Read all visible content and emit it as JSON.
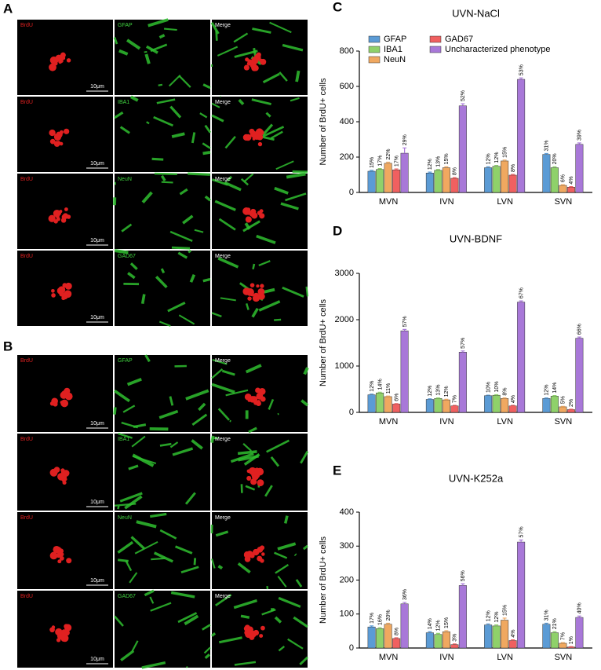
{
  "figure": {
    "panel_A": {
      "letter": "A",
      "rows": [
        [
          "BrdU",
          "GFAP",
          "Merge"
        ],
        [
          "BrdU",
          "IBA1",
          "Merge"
        ],
        [
          "BrdU",
          "NeuN",
          "Merge"
        ],
        [
          "BrdU",
          "GAD67",
          "Merge"
        ]
      ],
      "scale_bar": "10μm"
    },
    "panel_B": {
      "letter": "B",
      "rows": [
        [
          "BrdU",
          "GFAP",
          "Merge"
        ],
        [
          "BrdU",
          "IBA1",
          "Merge"
        ],
        [
          "BrdU",
          "NeuN",
          "Merge"
        ],
        [
          "BrdU",
          "GAD67",
          "Merge"
        ]
      ],
      "scale_bar": "10μm"
    }
  },
  "chart_data": [
    {
      "panel": "C",
      "type": "bar",
      "title": "UVN-NaCl",
      "y_label": "Number of BrdU+ cells",
      "legend": "upper left",
      "categories": [
        "MVN",
        "IVN",
        "LVN",
        "SVN"
      ],
      "ylim": [
        0,
        800
      ],
      "yticks": [
        0,
        200,
        400,
        600,
        800
      ],
      "series": [
        {
          "name": "GFAP",
          "color": "#5b9bd5",
          "values": [
            120,
            110,
            140,
            215
          ],
          "errors": [
            5,
            5,
            5,
            5
          ],
          "percent_labels": [
            "15%",
            "12%",
            "12%",
            "31%"
          ]
        },
        {
          "name": "IBA1",
          "color": "#8fd16a",
          "values": [
            130,
            125,
            148,
            140
          ],
          "errors": [
            5,
            5,
            5,
            5
          ],
          "percent_labels": [
            "17%",
            "13%",
            "12%",
            "20%"
          ]
        },
        {
          "name": "NeuN",
          "color": "#f0a860",
          "values": [
            165,
            140,
            178,
            40
          ],
          "errors": [
            6,
            5,
            5,
            4
          ],
          "percent_labels": [
            "22%",
            "15%",
            "15%",
            "6%"
          ]
        },
        {
          "name": "GAD67",
          "color": "#f06060",
          "values": [
            128,
            80,
            98,
            30
          ],
          "errors": [
            5,
            4,
            4,
            3
          ],
          "percent_labels": [
            "17%",
            "8%",
            "8%",
            "4%"
          ]
        },
        {
          "name": "Uncharacterized phenotype",
          "color": "#a878d8",
          "values": [
            222,
            490,
            640,
            272
          ],
          "errors": [
            30,
            12,
            8,
            8
          ],
          "percent_labels": [
            "29%",
            "52%",
            "53%",
            "39%"
          ]
        }
      ]
    },
    {
      "panel": "D",
      "type": "bar",
      "title": "UVN-BDNF",
      "y_label": "Number of BrdU+ cells",
      "categories": [
        "MVN",
        "IVN",
        "LVN",
        "SVN"
      ],
      "ylim": [
        0,
        3000
      ],
      "yticks": [
        0,
        1000,
        2000,
        3000
      ],
      "series": [
        {
          "color": "#5b9bd5",
          "values": [
            380,
            280,
            360,
            300
          ],
          "errors": [
            15,
            12,
            12,
            12
          ],
          "percent_labels": [
            "12%",
            "12%",
            "10%",
            "12%"
          ]
        },
        {
          "color": "#8fd16a",
          "values": [
            420,
            300,
            370,
            350
          ],
          "errors": [
            15,
            12,
            12,
            12
          ],
          "percent_labels": [
            "14%",
            "13%",
            "10%",
            "14%"
          ]
        },
        {
          "color": "#f0a860",
          "values": [
            340,
            270,
            300,
            120
          ],
          "errors": [
            12,
            12,
            12,
            10
          ],
          "percent_labels": [
            "11%",
            "12%",
            "8%",
            "5%"
          ]
        },
        {
          "color": "#f06060",
          "values": [
            180,
            140,
            140,
            60
          ],
          "errors": [
            10,
            10,
            10,
            8
          ],
          "percent_labels": [
            "6%",
            "7%",
            "4%",
            "2%"
          ]
        },
        {
          "color": "#a878d8",
          "values": [
            1760,
            1300,
            2380,
            1600
          ],
          "errors": [
            30,
            25,
            25,
            25
          ],
          "percent_labels": [
            "57%",
            "57%",
            "67%",
            "66%"
          ]
        }
      ]
    },
    {
      "panel": "E",
      "type": "bar",
      "title": "UVN-K252a",
      "y_label": "Number of BrdU+ cells",
      "categories": [
        "MVN",
        "IVN",
        "LVN",
        "SVN"
      ],
      "ylim": [
        0,
        400
      ],
      "yticks": [
        0,
        100,
        200,
        300,
        400
      ],
      "series": [
        {
          "color": "#5b9bd5",
          "values": [
            62,
            45,
            68,
            70
          ],
          "errors": [
            3,
            3,
            3,
            3
          ],
          "percent_labels": [
            "17%",
            "14%",
            "12%",
            "31%"
          ]
        },
        {
          "color": "#8fd16a",
          "values": [
            57,
            40,
            65,
            45
          ],
          "errors": [
            3,
            3,
            3,
            3
          ],
          "percent_labels": [
            "16%",
            "12%",
            "12%",
            "21%"
          ]
        },
        {
          "color": "#f0a860",
          "values": [
            70,
            48,
            82,
            14
          ],
          "errors": [
            3,
            3,
            6,
            2
          ],
          "percent_labels": [
            "20%",
            "15%",
            "15%",
            "7%"
          ]
        },
        {
          "color": "#f06060",
          "values": [
            28,
            10,
            22,
            3
          ],
          "errors": [
            2,
            2,
            2,
            1
          ],
          "percent_labels": [
            "8%",
            "3%",
            "4%",
            "1%"
          ]
        },
        {
          "color": "#a878d8",
          "values": [
            130,
            184,
            312,
            90
          ],
          "errors": [
            4,
            5,
            6,
            4
          ],
          "percent_labels": [
            "36%",
            "56%",
            "57%",
            "40%"
          ]
        }
      ]
    }
  ]
}
